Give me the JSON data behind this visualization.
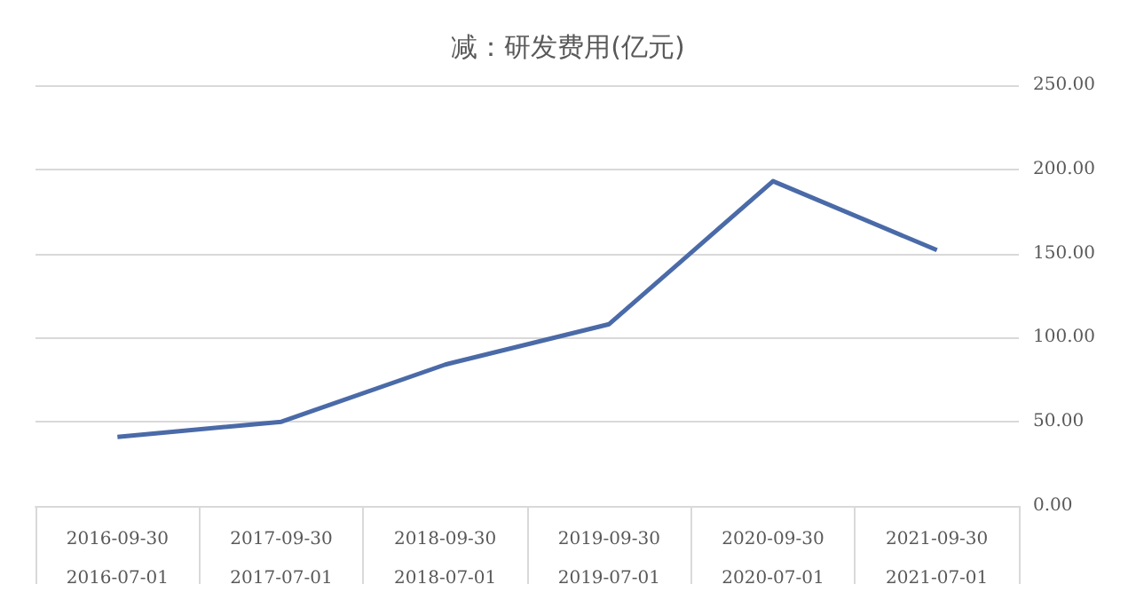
{
  "chart_data": {
    "type": "line",
    "title": "减：研发费用(亿元)",
    "categories": [
      "2016-09-30\n2016-07-01",
      "2017-09-30\n2017-07-01",
      "2018-09-30\n2018-07-01",
      "2019-09-30\n2019-07-01",
      "2020-09-30\n2020-07-01",
      "2021-09-30\n2021-07-01"
    ],
    "series": [
      {
        "color": "#4a6aa8",
        "values": [
          41,
          50,
          84,
          108,
          193,
          152
        ]
      }
    ],
    "ylim": [
      0,
      250
    ],
    "yticks": [
      {
        "value": 0,
        "label": "0.00"
      },
      {
        "value": 50,
        "label": "50.00"
      },
      {
        "value": 100,
        "label": "100.00"
      },
      {
        "value": 150,
        "label": "150.00"
      },
      {
        "value": 200,
        "label": "200.00"
      },
      {
        "value": 250,
        "label": "250.00"
      }
    ],
    "grid": "y",
    "marker": "none",
    "line_style": "solid"
  }
}
